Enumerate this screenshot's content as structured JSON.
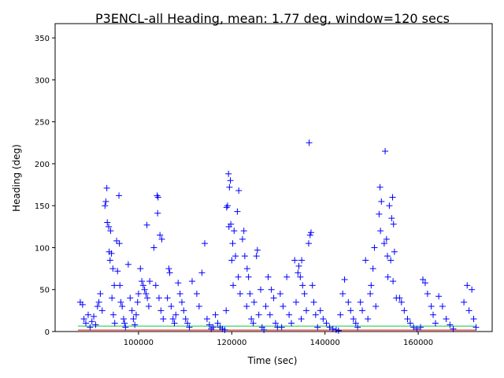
{
  "chart_data": {
    "type": "scatter",
    "title": "P3ENCL-all Heading, mean: 1.77 deg, window=120 secs",
    "x_label": "Time (sec)",
    "y_label": "Heading (deg)",
    "xlim": [
      82110,
      175865
    ],
    "ylim": [
      0,
      367
    ],
    "xticks": [
      100000,
      120000,
      140000,
      160000
    ],
    "yticks": [
      0,
      50,
      100,
      150,
      200,
      250,
      300,
      350
    ],
    "lines": [
      {
        "color": "#ff0000",
        "x": [
          87000,
          172500
        ],
        "values": [
          1.77,
          1.77
        ]
      },
      {
        "color": "#00cc44",
        "x": [
          87000,
          172500
        ],
        "values": [
          6.5,
          6.5
        ]
      }
    ],
    "series": [
      {
        "color": "#0000ff",
        "x": [
          87500,
          88000,
          88300,
          88700,
          89200,
          89600,
          90000,
          90400,
          90800,
          91200,
          91500,
          91800,
          92200,
          92800,
          93000,
          93200,
          93300,
          93600,
          94000,
          93700,
          94200,
          93900,
          94500,
          94800,
          94300,
          94600,
          94900,
          95800,
          95300,
          95900,
          95500,
          96000,
          96200,
          96500,
          96800,
          97000,
          97200,
          97800,
          98200,
          98600,
          98900,
          99200,
          99500,
          99800,
          100000,
          100400,
          100700,
          101000,
          101300,
          101600,
          101900,
          102200,
          101800,
          102400,
          104000,
          104200,
          104100,
          104600,
          105000,
          103300,
          103700,
          104400,
          104800,
          105300,
          106500,
          106700,
          106200,
          107000,
          107400,
          107700,
          108000,
          108500,
          108900,
          109300,
          109700,
          110100,
          110500,
          110900,
          111500,
          114200,
          113600,
          112500,
          113000,
          114700,
          115200,
          115600,
          116000,
          116500,
          117000,
          117500,
          118000,
          118500,
          118800,
          119300,
          119700,
          119500,
          119100,
          118900,
          119800,
          119400,
          120500,
          120200,
          120800,
          120000,
          121400,
          120300,
          121800,
          121500,
          121200,
          122600,
          122300,
          122800,
          123300,
          123600,
          123900,
          123200,
          124200,
          125500,
          125300,
          126200,
          124800,
          125800,
          124600,
          126500,
          127800,
          128500,
          129000,
          127300,
          128200,
          129400,
          129800,
          126900,
          131800,
          130400,
          131000,
          132300,
          132800,
          130700,
          133500,
          134400,
          134200,
          134700,
          135200,
          135000,
          135600,
          133800,
          136000,
          134900,
          136600,
          137000,
          136800,
          136500,
          137300,
          137600,
          138000,
          138400,
          139000,
          139600,
          140300,
          141000,
          141700,
          142400,
          142900,
          143300,
          144200,
          143800,
          145000,
          145500,
          146100,
          146600,
          147000,
          148700,
          147600,
          148000,
          149200,
          149700,
          151800,
          152100,
          151600,
          151900,
          152700,
          150600,
          153400,
          150300,
          149900,
          150900,
          152900,
          154500,
          153800,
          154300,
          154700,
          153200,
          154900,
          154100,
          153500,
          154600,
          155300,
          156000,
          156400,
          157000,
          157700,
          158300,
          159000,
          159700,
          161000,
          161500,
          162000,
          162800,
          163200,
          163700,
          160500,
          164400,
          165200,
          166000,
          166800,
          167500,
          170500,
          171500,
          169800,
          170900,
          171900,
          172400
        ],
        "values": [
          35,
          32,
          15,
          10,
          20,
          5,
          12,
          18,
          8,
          30,
          35,
          45,
          25,
          150,
          155,
          171,
          130,
          125,
          120,
          95,
          93,
          85,
          75,
          55,
          40,
          20,
          10,
          162,
          108,
          105,
          72,
          55,
          35,
          30,
          15,
          10,
          5,
          80,
          40,
          25,
          15,
          8,
          20,
          35,
          45,
          75,
          60,
          55,
          50,
          45,
          40,
          30,
          127,
          60,
          162,
          160,
          141,
          115,
          110,
          100,
          55,
          40,
          25,
          15,
          75,
          70,
          40,
          30,
          15,
          10,
          20,
          58,
          45,
          35,
          25,
          15,
          10,
          5,
          60,
          105,
          70,
          45,
          30,
          15,
          8,
          3,
          5,
          20,
          10,
          5,
          3,
          2,
          25,
          188,
          180,
          172,
          150,
          148,
          128,
          125,
          120,
          105,
          90,
          85,
          65,
          55,
          45,
          168,
          143,
          120,
          110,
          90,
          75,
          65,
          45,
          30,
          15,
          97,
          90,
          50,
          35,
          20,
          10,
          5,
          65,
          50,
          40,
          30,
          20,
          10,
          5,
          2,
          65,
          45,
          30,
          20,
          10,
          5,
          85,
          78,
          70,
          65,
          55,
          85,
          45,
          35,
          25,
          15,
          225,
          118,
          115,
          105,
          55,
          35,
          20,
          5,
          25,
          15,
          10,
          5,
          3,
          2,
          1,
          20,
          62,
          45,
          35,
          25,
          15,
          10,
          5,
          85,
          35,
          25,
          15,
          45,
          172,
          155,
          140,
          120,
          105,
          100,
          90,
          75,
          55,
          30,
          215,
          160,
          150,
          135,
          128,
          110,
          95,
          85,
          65,
          60,
          40,
          40,
          35,
          25,
          15,
          10,
          5,
          3,
          62,
          58,
          45,
          30,
          20,
          10,
          5,
          42,
          30,
          15,
          8,
          3,
          55,
          50,
          35,
          25,
          15,
          5
        ]
      }
    ]
  }
}
